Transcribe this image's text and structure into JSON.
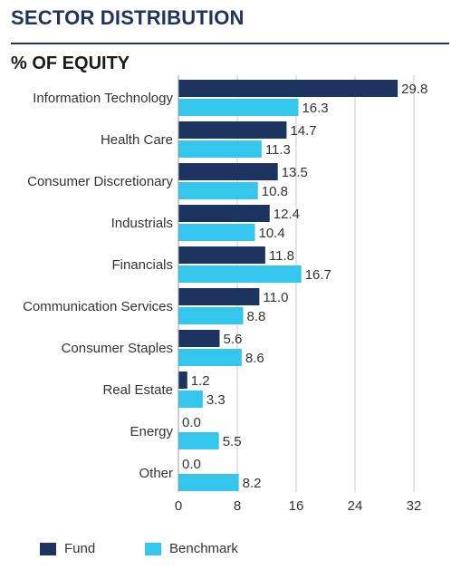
{
  "header": {
    "title": "SECTOR DISTRIBUTION",
    "subtitle": "% OF EQUITY"
  },
  "colors": {
    "fund": "#1d3461",
    "benchmark": "#34c6ec",
    "title": "#1d3461",
    "grid": "#c9c9c9",
    "text": "#333333"
  },
  "chart_data": {
    "type": "bar",
    "orientation": "horizontal",
    "title": "% OF EQUITY",
    "categories": [
      "Information Technology",
      "Health Care",
      "Consumer Discretionary",
      "Industrials",
      "Financials",
      "Communication Services",
      "Consumer Staples",
      "Real Estate",
      "Energy",
      "Other"
    ],
    "series": [
      {
        "name": "Fund",
        "values": [
          29.8,
          14.7,
          13.5,
          12.4,
          11.8,
          11.0,
          5.6,
          1.2,
          0.0,
          0.0
        ],
        "labels": [
          "29.8",
          "14.7",
          "13.5",
          "12.4",
          "11.8",
          "11.0",
          "5.6",
          "1.2",
          "0.0",
          "0.0"
        ]
      },
      {
        "name": "Benchmark",
        "values": [
          16.3,
          11.3,
          10.8,
          10.4,
          16.7,
          8.8,
          8.6,
          3.3,
          5.5,
          8.2
        ],
        "labels": [
          "16.3",
          "11.3",
          "10.8",
          "10.4",
          "16.7",
          "8.8",
          "8.6",
          "3.3",
          "5.5",
          "8.2"
        ]
      }
    ],
    "xlim": [
      0,
      32
    ],
    "xticks": [
      0,
      8,
      16,
      24,
      32
    ],
    "xtick_labels": [
      "0",
      "8",
      "16",
      "24",
      "32"
    ],
    "grid": "vertical",
    "legend": "bottom-left"
  },
  "legend": {
    "fund_label": "Fund",
    "benchmark_label": "Benchmark"
  }
}
